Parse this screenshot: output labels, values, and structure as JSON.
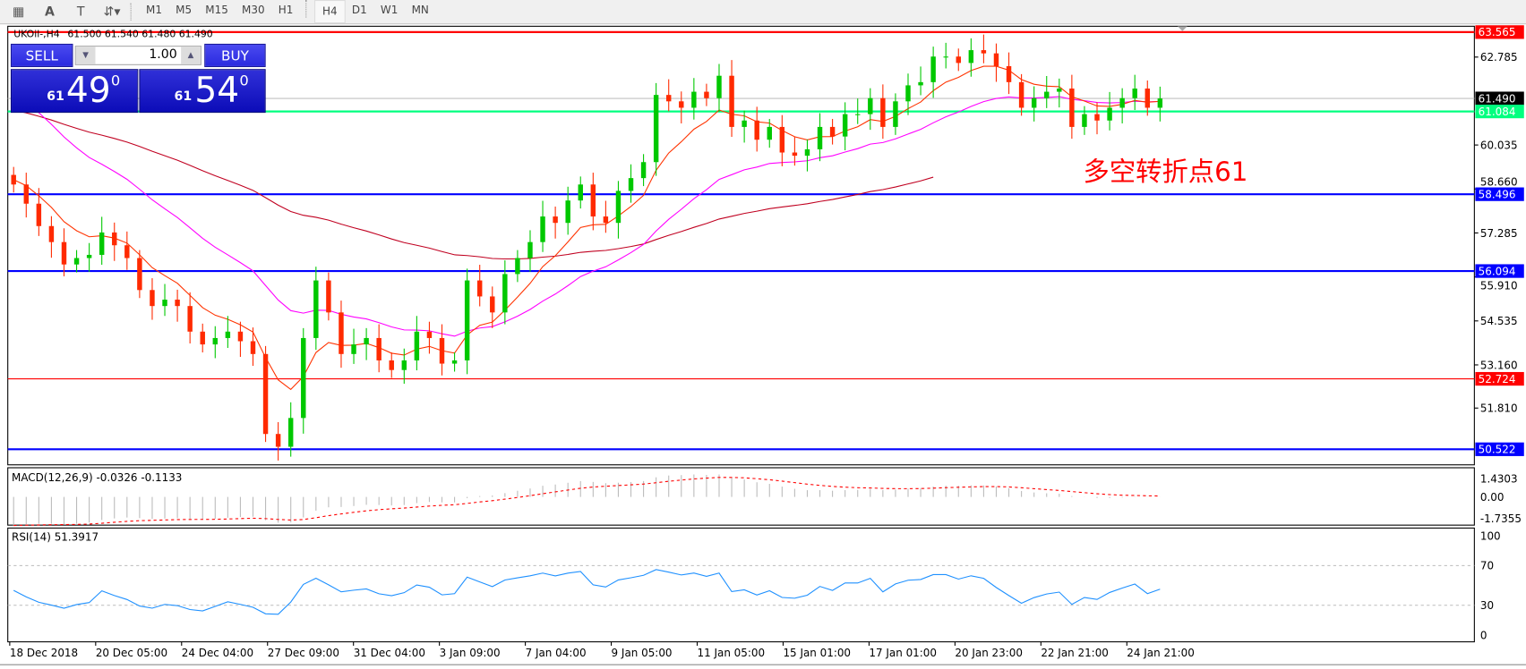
{
  "toolbar": {
    "tools": [
      "grid-fibo-icon",
      "text-icon",
      "text-label-icon",
      "arrows-icon"
    ],
    "timeframes": [
      "M1",
      "M5",
      "M15",
      "M30",
      "H1",
      "H4",
      "D1",
      "W1",
      "MN"
    ],
    "active_timeframe": "H4"
  },
  "chart_header": {
    "symbol": "UKOil-,H4",
    "ohlc": "61.500 61.540 61.480 61.490"
  },
  "one_click": {
    "sell_label": "SELL",
    "buy_label": "BUY",
    "lot": "1.00",
    "sell_prefix": "61",
    "sell_big": "49",
    "sell_sup": "0",
    "buy_prefix": "61",
    "buy_big": "54",
    "buy_sup": "0"
  },
  "annotation": {
    "text": "多空转折点61",
    "color": "#ff0000"
  },
  "colors": {
    "bull": "#00c800",
    "bear": "#ff2a00",
    "ma_fast": "#ff3300",
    "ma_mid": "#ff00ff",
    "ma_slow": "#c00020",
    "rsi": "#1e90ff",
    "macd_signal": "#ff0000"
  },
  "chart_data": {
    "type": "candlestick",
    "price_range": [
      50.0,
      64.0
    ],
    "price_ticks": [
      "62.785",
      "60.035",
      "58.660",
      "57.285",
      "55.910",
      "54.535",
      "53.160",
      "51.810"
    ],
    "hlines": [
      {
        "price": 63.565,
        "label": "63.565",
        "color": "#ff0000",
        "width": 2
      },
      {
        "price": 61.49,
        "label": "61.490",
        "color": "#c0c0c0",
        "width": 1,
        "label_bg": "#000000"
      },
      {
        "price": 61.084,
        "label": "61.084",
        "color": "#00ff7f",
        "width": 2
      },
      {
        "price": 58.496,
        "label": "58.496",
        "color": "#0000ff",
        "width": 2
      },
      {
        "price": 56.094,
        "label": "56.094",
        "color": "#0000ff",
        "width": 2
      },
      {
        "price": 52.724,
        "label": "52.724",
        "color": "#ff0000",
        "width": 1
      },
      {
        "price": 50.522,
        "label": "50.522",
        "color": "#0000ff",
        "width": 2
      }
    ],
    "closes": [
      58.8,
      58.2,
      57.5,
      57.0,
      56.3,
      56.5,
      56.6,
      57.3,
      56.9,
      56.5,
      55.5,
      55.0,
      55.2,
      55.0,
      54.2,
      53.8,
      54.0,
      54.2,
      53.9,
      53.5,
      51.0,
      50.6,
      51.5,
      54.0,
      55.8,
      54.8,
      53.5,
      53.8,
      54.0,
      53.3,
      53.0,
      53.3,
      54.2,
      54.0,
      53.2,
      53.3,
      55.8,
      55.3,
      54.8,
      56.0,
      56.5,
      57.0,
      57.8,
      57.6,
      58.3,
      58.8,
      57.8,
      57.6,
      58.6,
      59.0,
      59.5,
      61.6,
      61.4,
      61.2,
      61.7,
      61.5,
      62.2,
      60.6,
      60.8,
      60.2,
      60.6,
      59.8,
      59.7,
      59.9,
      60.6,
      60.3,
      61.0,
      61.0,
      61.5,
      60.6,
      61.4,
      61.9,
      62.0,
      62.8,
      62.8,
      62.6,
      63.0,
      62.9,
      62.5,
      62.0,
      61.2,
      61.5,
      61.7,
      61.8,
      60.6,
      61.0,
      60.8,
      61.2,
      61.5,
      61.8,
      61.2,
      61.49
    ],
    "x_labels": [
      "18 Dec 2018",
      "20 Dec 05:00",
      "24 Dec 04:00",
      "27 Dec 09:00",
      "31 Dec 04:00",
      "3 Jan 09:00",
      "7 Jan 04:00",
      "9 Jan 05:00",
      "11 Jan 05:00",
      "15 Jan 01:00",
      "17 Jan 01:00",
      "20 Jan 23:00",
      "22 Jan 21:00",
      "24 Jan 21:00"
    ],
    "macd": {
      "label": "MACD(12,26,9) -0.0326 -0.1133",
      "ticks": [
        "1.4303",
        "0.00",
        "-1.7355"
      ],
      "range": [
        -1.7355,
        1.4303
      ]
    },
    "rsi": {
      "label": "RSI(14) 51.3917",
      "ticks": [
        "100",
        "70",
        "30",
        "0"
      ],
      "levels": [
        70,
        30
      ],
      "range": [
        0,
        100
      ]
    }
  }
}
